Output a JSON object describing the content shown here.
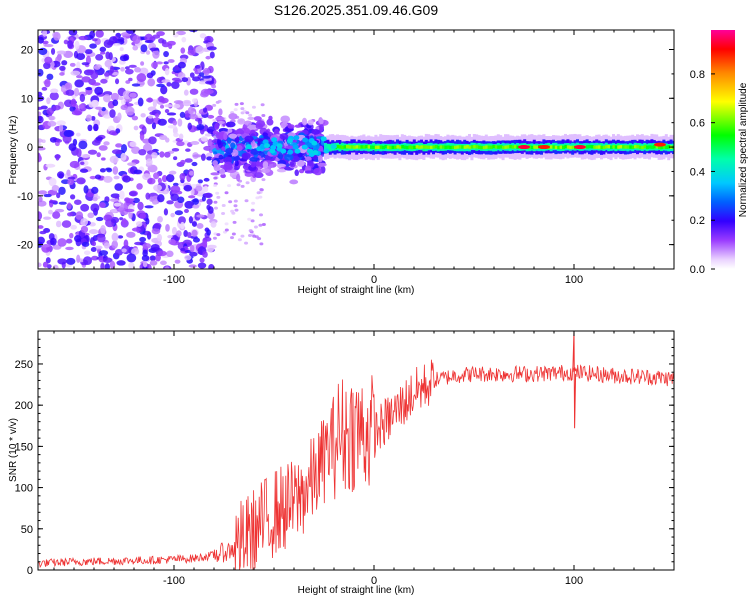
{
  "chart_data": [
    {
      "type": "heatmap",
      "title": "S126.2025.351.09.46.G09",
      "xlabel": "Height of straight line (km)",
      "ylabel": "Frequency (Hz)",
      "xlim": [
        -168,
        150
      ],
      "ylim": [
        -25,
        24
      ],
      "x_ticks": [
        -100,
        0,
        100
      ],
      "y_ticks": [
        -20,
        -10,
        0,
        10,
        20
      ],
      "colorbar": {
        "label": "Normalized spectral amplitude",
        "range": [
          0,
          0.98
        ],
        "ticks": [
          0.0,
          0.2,
          0.4,
          0.6,
          0.8
        ],
        "tick_labels": [
          "0.0",
          "0.2",
          "0.4",
          "0.6",
          "0.8"
        ]
      },
      "features": [
        {
          "x_range": [
            -168,
            -80
          ],
          "freq_range": [
            -25,
            24
          ],
          "amplitude": 0.12,
          "kind": "broadband scatter"
        },
        {
          "x_range": [
            -80,
            -25
          ],
          "freq_range": [
            -8,
            8
          ],
          "amplitude": 0.2,
          "kind": "clustered"
        },
        {
          "x_range": [
            -25,
            150
          ],
          "freq_center": 0,
          "freq_halfwidth": 1.5,
          "amplitude": 0.6,
          "kind": "narrow band"
        },
        {
          "x": 75,
          "freq": 0,
          "amplitude": 0.95
        },
        {
          "x": 85,
          "freq": 0,
          "amplitude": 0.9
        },
        {
          "x": 103,
          "freq": 0,
          "amplitude": 0.95
        },
        {
          "x": 143,
          "freq": 0.5,
          "amplitude": 0.9
        }
      ]
    },
    {
      "type": "line",
      "xlabel": "Height of straight line (km)",
      "ylabel": "SNR (10 * v/v)",
      "xlim": [
        -168,
        150
      ],
      "ylim": [
        0,
        290
      ],
      "x_ticks": [
        -100,
        0,
        100
      ],
      "y_ticks": [
        0,
        50,
        100,
        150,
        200,
        250
      ],
      "color": "#ee3333",
      "series": [
        {
          "name": "SNR",
          "x": [
            -168,
            -150,
            -130,
            -110,
            -90,
            -80,
            -70,
            -60,
            -50,
            -40,
            -30,
            -20,
            -10,
            0,
            10,
            20,
            30,
            40,
            50,
            60,
            80,
            100,
            120,
            140,
            150
          ],
          "values": [
            8,
            10,
            11,
            12,
            14,
            18,
            25,
            45,
            70,
            80,
            110,
            160,
            170,
            165,
            190,
            215,
            230,
            236,
            238,
            238,
            238,
            240,
            236,
            234,
            232
          ]
        }
      ],
      "annotations": [
        {
          "x": 100,
          "value": 290,
          "note": "spike"
        },
        {
          "x": 100,
          "value": 172,
          "note": "dip"
        }
      ]
    }
  ]
}
